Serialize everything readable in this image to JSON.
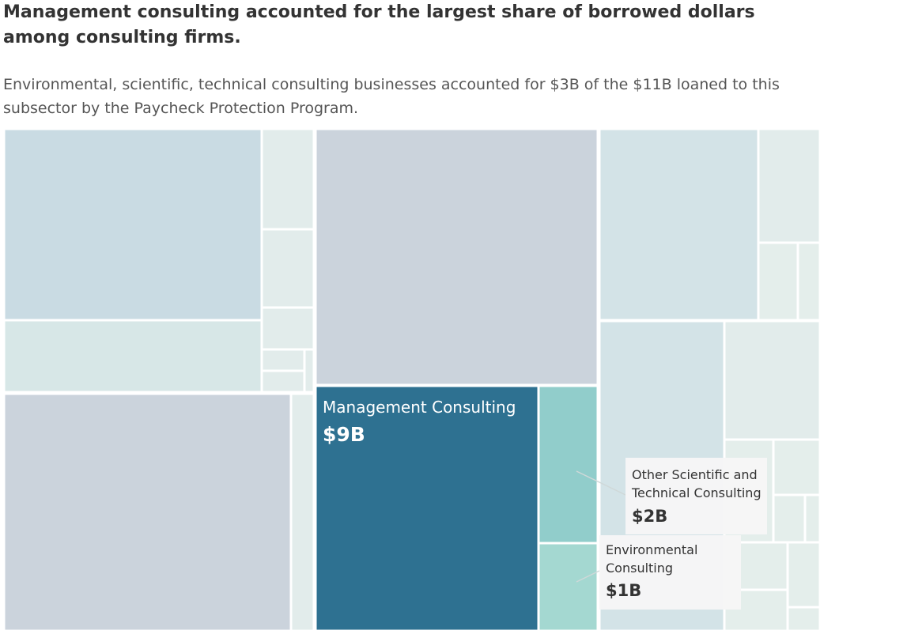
{
  "title": "Management consulting accounted for the largest share of borrowed dollars among consulting firms.",
  "subtitle": "Environmental, scientific, technical consulting businesses accounted for $3B of the $11B loaned to this subsector by the Paycheck Protection Program.",
  "chart_data": {
    "type": "treemap",
    "title": "Management consulting accounted for the largest share of borrowed dollars among consulting firms.",
    "subtitle": "Environmental, scientific, technical consulting businesses accounted for $3B of the $11B loaned to this subsector by the Paycheck Protection Program.",
    "unit": "USD",
    "highlighted": [
      {
        "name": "Management Consulting",
        "value_label": "$9B",
        "color": "#2e7191"
      },
      {
        "name": "Other Scientific and Technical Consulting",
        "value_label": "$2B",
        "color": "#91cdcb"
      },
      {
        "name": "Environmental Consulting",
        "value_label": "$1B",
        "color": "#a4d8d1"
      }
    ],
    "colors": {
      "context_gray": "#cbd3dc",
      "context_blue": "#c9dbe3",
      "context_light": "#e2eceb",
      "highlight_dark": "#2e7191",
      "highlight_teal": "#91cdcb",
      "highlight_light": "#a4d8d1",
      "callout_bg": "#f6f6f6"
    }
  }
}
